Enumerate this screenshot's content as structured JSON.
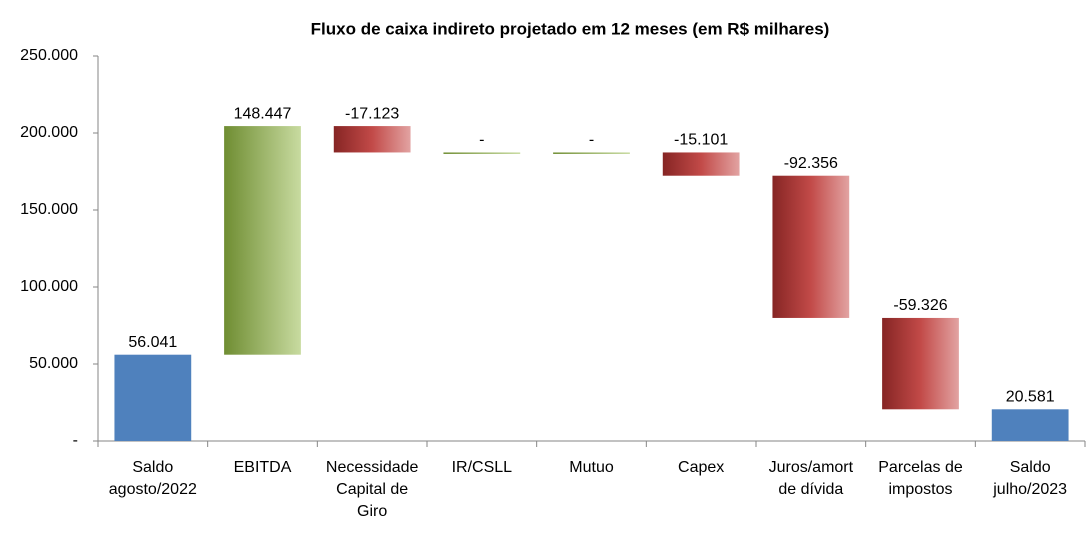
{
  "chart_data": {
    "type": "waterfall",
    "title": "Fluxo de caixa indireto projetado em 12 meses (em  R$ milhares)",
    "categories": [
      [
        "Saldo",
        "agosto/2022"
      ],
      [
        "EBITDA"
      ],
      [
        "Necessidade",
        "Capital de",
        "Giro"
      ],
      [
        "IR/CSLL"
      ],
      [
        "Mutuo"
      ],
      [
        "Capex"
      ],
      [
        "Juros/amort",
        "de dívida"
      ],
      [
        "Parcelas de",
        "impostos"
      ],
      [
        "Saldo",
        "julho/2023"
      ]
    ],
    "values": [
      56041,
      148447,
      -17123,
      0,
      0,
      -15101,
      -92356,
      -59326,
      20581
    ],
    "value_labels": [
      "56.041",
      "148.447",
      "-17.123",
      "-",
      "-",
      "-15.101",
      "-92.356",
      "-59.326",
      "20.581"
    ],
    "measure": [
      "absolute",
      "relative",
      "relative",
      "relative",
      "relative",
      "relative",
      "relative",
      "relative",
      "absolute"
    ],
    "colors": {
      "total": "#4f81bd",
      "increase": "#9bbb59",
      "decrease": "#c0504d"
    },
    "ylim": [
      0,
      250000
    ],
    "yticks": [
      {
        "value": 0,
        "label": "-"
      },
      {
        "value": 50000,
        "label": "50.000"
      },
      {
        "value": 100000,
        "label": "100.000"
      },
      {
        "value": 150000,
        "label": "150.000"
      },
      {
        "value": 200000,
        "label": "200.000"
      },
      {
        "value": 250000,
        "label": "250.000"
      }
    ],
    "grid": false
  }
}
